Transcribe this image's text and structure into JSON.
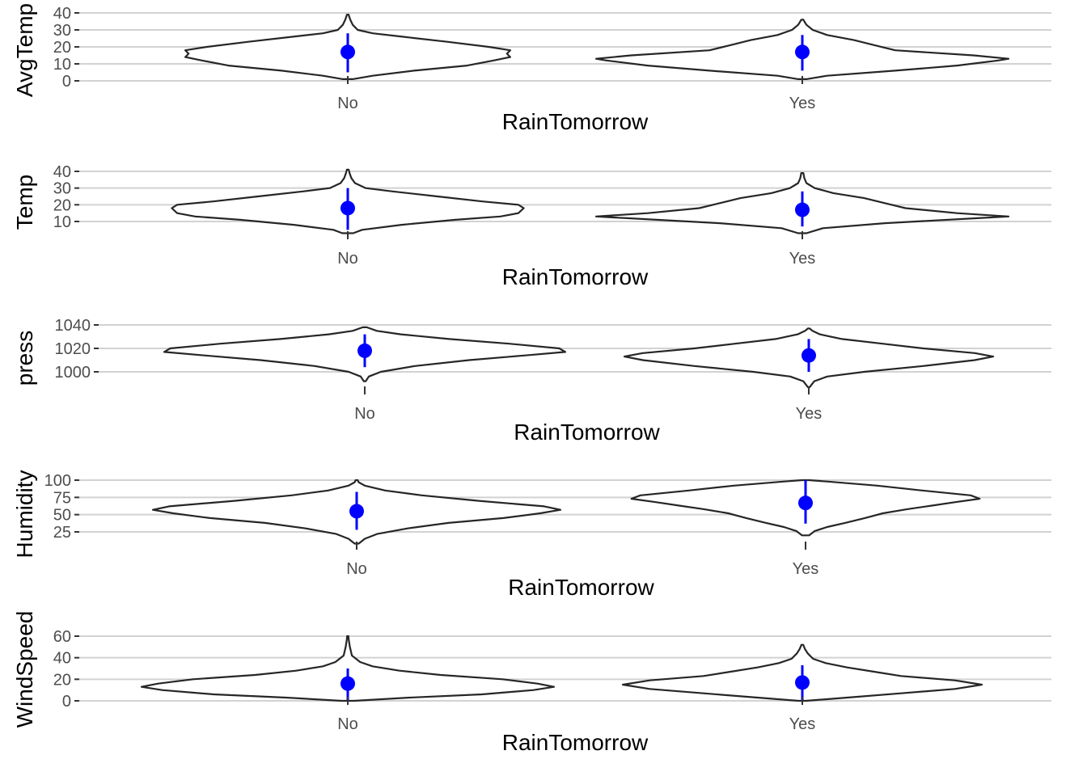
{
  "colors": {
    "point": "#0000ff",
    "outline": "#262626",
    "grid": "#d2d2d2",
    "tick_text": "#4d4d4d"
  },
  "chart_data": [
    {
      "type": "violin",
      "xlabel": "RainTomorrow",
      "ylabel": "AvgTemp",
      "categories": [
        "No",
        "Yes"
      ],
      "yticks": [
        0,
        10,
        20,
        30,
        40
      ],
      "ylim": [
        0,
        40
      ],
      "grid": true,
      "violins": [
        {
          "category": "No",
          "min": 1,
          "max": 39,
          "mean": 17,
          "range": [
            5,
            28
          ],
          "density": [
            [
              1,
              0.03
            ],
            [
              3,
              0.15
            ],
            [
              6,
              0.4
            ],
            [
              9,
              0.72
            ],
            [
              12,
              0.88
            ],
            [
              14,
              0.98
            ],
            [
              16,
              0.96
            ],
            [
              18,
              0.98
            ],
            [
              20,
              0.85
            ],
            [
              23,
              0.6
            ],
            [
              26,
              0.33
            ],
            [
              28,
              0.15
            ],
            [
              30,
              0.06
            ],
            [
              33,
              0.03
            ],
            [
              36,
              0.015
            ],
            [
              39,
              0.005
            ]
          ]
        },
        {
          "category": "Yes",
          "min": 1,
          "max": 36,
          "mean": 17,
          "range": [
            6,
            27
          ],
          "density": [
            [
              1,
              0.02
            ],
            [
              3,
              0.12
            ],
            [
              6,
              0.45
            ],
            [
              9,
              0.75
            ],
            [
              12,
              0.95
            ],
            [
              13,
              1.0
            ],
            [
              15,
              0.83
            ],
            [
              18,
              0.45
            ],
            [
              21,
              0.35
            ],
            [
              24,
              0.25
            ],
            [
              27,
              0.12
            ],
            [
              30,
              0.05
            ],
            [
              33,
              0.02
            ],
            [
              35,
              0.01
            ],
            [
              36,
              0.005
            ]
          ]
        }
      ]
    },
    {
      "type": "violin",
      "xlabel": "RainTomorrow",
      "ylabel": "Temp",
      "categories": [
        "No",
        "Yes"
      ],
      "yticks": [
        10,
        20,
        30,
        40
      ],
      "ylim": [
        1,
        41
      ],
      "grid": true,
      "violins": [
        {
          "category": "No",
          "min": 3,
          "max": 41,
          "mean": 18,
          "range": [
            5,
            30
          ],
          "density": [
            [
              3,
              0.03
            ],
            [
              5,
              0.08
            ],
            [
              8,
              0.3
            ],
            [
              11,
              0.6
            ],
            [
              13,
              0.85
            ],
            [
              15,
              0.95
            ],
            [
              18,
              0.98
            ],
            [
              20,
              0.95
            ],
            [
              22,
              0.75
            ],
            [
              25,
              0.5
            ],
            [
              28,
              0.25
            ],
            [
              30,
              0.1
            ],
            [
              33,
              0.04
            ],
            [
              36,
              0.02
            ],
            [
              39,
              0.01
            ],
            [
              41,
              0.005
            ]
          ]
        },
        {
          "category": "Yes",
          "min": 3,
          "max": 39,
          "mean": 17,
          "range": [
            7,
            28
          ],
          "density": [
            [
              3,
              0.02
            ],
            [
              6,
              0.1
            ],
            [
              9,
              0.4
            ],
            [
              12,
              0.85
            ],
            [
              13,
              1.0
            ],
            [
              15,
              0.75
            ],
            [
              18,
              0.5
            ],
            [
              21,
              0.4
            ],
            [
              24,
              0.3
            ],
            [
              27,
              0.15
            ],
            [
              30,
              0.06
            ],
            [
              33,
              0.02
            ],
            [
              36,
              0.01
            ],
            [
              39,
              0.005
            ]
          ]
        }
      ]
    },
    {
      "type": "violin",
      "xlabel": "RainTomorrow",
      "ylabel": "press",
      "categories": [
        "No",
        "Yes"
      ],
      "yticks": [
        1000,
        1020,
        1040
      ],
      "ylim": [
        990,
        1040
      ],
      "grid": true,
      "violins": [
        {
          "category": "No",
          "min": 992,
          "max": 1038,
          "mean": 1018,
          "range": [
            1004,
            1032
          ],
          "density": [
            [
              992,
              0.005
            ],
            [
              996,
              0.02
            ],
            [
              1000,
              0.08
            ],
            [
              1005,
              0.25
            ],
            [
              1010,
              0.52
            ],
            [
              1014,
              0.8
            ],
            [
              1017,
              1.0
            ],
            [
              1020,
              0.97
            ],
            [
              1024,
              0.72
            ],
            [
              1028,
              0.42
            ],
            [
              1032,
              0.18
            ],
            [
              1035,
              0.06
            ],
            [
              1038,
              0.01
            ]
          ]
        },
        {
          "category": "Yes",
          "min": 987,
          "max": 1037,
          "mean": 1014,
          "range": [
            1000,
            1028
          ],
          "density": [
            [
              987,
              0.005
            ],
            [
              992,
              0.03
            ],
            [
              996,
              0.1
            ],
            [
              1000,
              0.3
            ],
            [
              1005,
              0.62
            ],
            [
              1010,
              0.9
            ],
            [
              1013,
              1.0
            ],
            [
              1016,
              0.9
            ],
            [
              1020,
              0.62
            ],
            [
              1024,
              0.4
            ],
            [
              1028,
              0.18
            ],
            [
              1032,
              0.06
            ],
            [
              1035,
              0.02
            ],
            [
              1037,
              0.005
            ]
          ]
        }
      ]
    },
    {
      "type": "violin",
      "xlabel": "RainTomorrow",
      "ylabel": "Humidity",
      "categories": [
        "No",
        "Yes"
      ],
      "yticks": [
        25,
        50,
        75,
        100
      ],
      "ylim": [
        0,
        100
      ],
      "grid": true,
      "violins": [
        {
          "category": "No",
          "min": 8,
          "max": 100,
          "mean": 55,
          "range": [
            28,
            83
          ],
          "density": [
            [
              8,
              0.01
            ],
            [
              15,
              0.04
            ],
            [
              22,
              0.1
            ],
            [
              30,
              0.25
            ],
            [
              38,
              0.45
            ],
            [
              45,
              0.72
            ],
            [
              52,
              0.9
            ],
            [
              57,
              1.0
            ],
            [
              62,
              0.92
            ],
            [
              70,
              0.6
            ],
            [
              78,
              0.32
            ],
            [
              85,
              0.14
            ],
            [
              92,
              0.04
            ],
            [
              97,
              0.01
            ],
            [
              100,
              0.005
            ]
          ]
        },
        {
          "category": "Yes",
          "min": 20,
          "max": 100,
          "mean": 67,
          "range": [
            37,
            100
          ],
          "density": [
            [
              20,
              0.02
            ],
            [
              26,
              0.05
            ],
            [
              32,
              0.12
            ],
            [
              38,
              0.22
            ],
            [
              45,
              0.33
            ],
            [
              52,
              0.43
            ],
            [
              58,
              0.57
            ],
            [
              63,
              0.7
            ],
            [
              68,
              0.83
            ],
            [
              73,
              0.97
            ],
            [
              78,
              0.92
            ],
            [
              85,
              0.65
            ],
            [
              92,
              0.4
            ],
            [
              98,
              0.12
            ],
            [
              100,
              0.02
            ]
          ]
        }
      ]
    },
    {
      "type": "violin",
      "xlabel": "RainTomorrow",
      "ylabel": "WindSpeed",
      "categories": [
        "No",
        "Yes"
      ],
      "yticks": [
        0,
        20,
        40,
        60
      ],
      "ylim": [
        0,
        60
      ],
      "grid": true,
      "violins": [
        {
          "category": "No",
          "min": 0,
          "max": 60,
          "mean": 16,
          "range": [
            0,
            30
          ],
          "density": [
            [
              0,
              0.03
            ],
            [
              3,
              0.3
            ],
            [
              6,
              0.65
            ],
            [
              10,
              0.9
            ],
            [
              13,
              1.0
            ],
            [
              16,
              0.92
            ],
            [
              20,
              0.75
            ],
            [
              24,
              0.45
            ],
            [
              28,
              0.25
            ],
            [
              32,
              0.12
            ],
            [
              36,
              0.06
            ],
            [
              42,
              0.02
            ],
            [
              50,
              0.01
            ],
            [
              56,
              0.005
            ],
            [
              60,
              0.003
            ]
          ]
        },
        {
          "category": "Yes",
          "min": 0,
          "max": 52,
          "mean": 17,
          "range": [
            0,
            33
          ],
          "density": [
            [
              0,
              0.02
            ],
            [
              3,
              0.25
            ],
            [
              7,
              0.55
            ],
            [
              11,
              0.85
            ],
            [
              15,
              1.0
            ],
            [
              19,
              0.85
            ],
            [
              23,
              0.55
            ],
            [
              27,
              0.4
            ],
            [
              31,
              0.25
            ],
            [
              35,
              0.13
            ],
            [
              39,
              0.06
            ],
            [
              44,
              0.03
            ],
            [
              48,
              0.015
            ],
            [
              52,
              0.005
            ]
          ]
        }
      ]
    }
  ]
}
